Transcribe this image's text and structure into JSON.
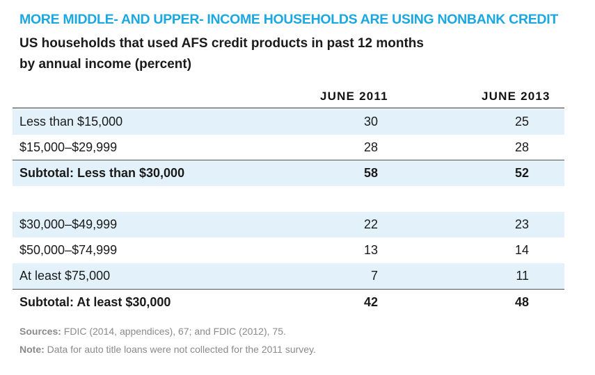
{
  "title": "MORE MIDDLE- AND UPPER- INCOME HOUSEHOLDS ARE USING NONBANK CREDIT",
  "subtitle_line1": "US households that used AFS credit products in past 12 months",
  "subtitle_line2": "by annual income (percent)",
  "chart_data": {
    "type": "table",
    "columns": [
      "JUNE 2011",
      "JUNE 2013"
    ],
    "rows": [
      {
        "label": "Less than $15,000",
        "june_2011": "30",
        "june_2013": "25"
      },
      {
        "label": "$15,000–$29,999",
        "june_2011": "28",
        "june_2013": "28"
      },
      {
        "label": "Subtotal: Less than $30,000",
        "june_2011": "58",
        "june_2013": "52"
      },
      {
        "label": "$30,000–$49,999",
        "june_2011": "22",
        "june_2013": "23"
      },
      {
        "label": "$50,000–$74,999",
        "june_2011": "13",
        "june_2013": "14"
      },
      {
        "label": "At least $75,000",
        "june_2011": "7",
        "june_2013": "11"
      },
      {
        "label": "Subtotal: At least $30,000",
        "june_2011": "42",
        "june_2013": "48"
      }
    ]
  },
  "sources_label": "Sources:",
  "sources_text": " FDIC (2014, appendices), 67; and FDIC (2012), 75.",
  "note_label": "Note:",
  "note_text": " Data for auto title loans were not collected for the 2011 survey.",
  "colors": {
    "title": "#1ba7e0",
    "row_shade": "#e3f2fa"
  }
}
